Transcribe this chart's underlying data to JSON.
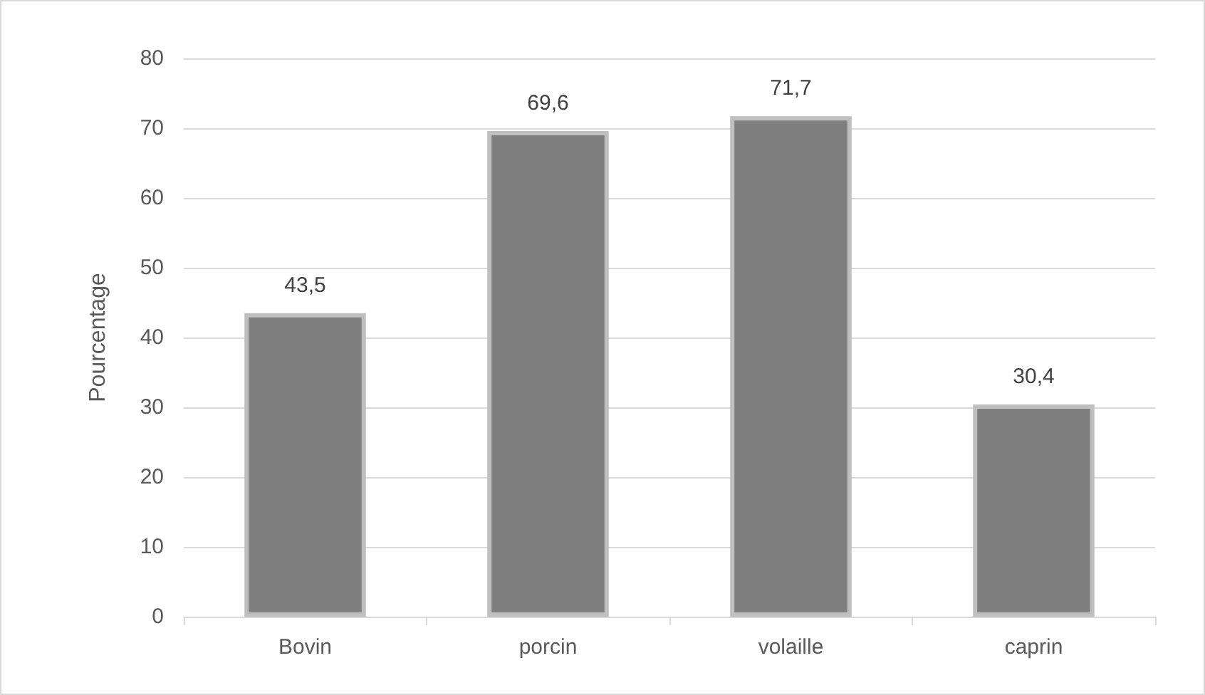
{
  "chart_data": {
    "type": "bar",
    "ylabel": "Pourcentage",
    "categories": [
      "Bovin",
      "porcin",
      "volaille",
      "caprin"
    ],
    "values": [
      43.5,
      69.6,
      71.7,
      30.4
    ],
    "color": "#7f7f7f",
    "value_labels": [
      "43,5",
      "69,6",
      "71,7",
      "30,4"
    ],
    "ylim": [
      0,
      80
    ],
    "yticks": [
      0,
      10,
      20,
      30,
      40,
      50,
      60,
      70,
      80
    ],
    "grid": "y"
  }
}
